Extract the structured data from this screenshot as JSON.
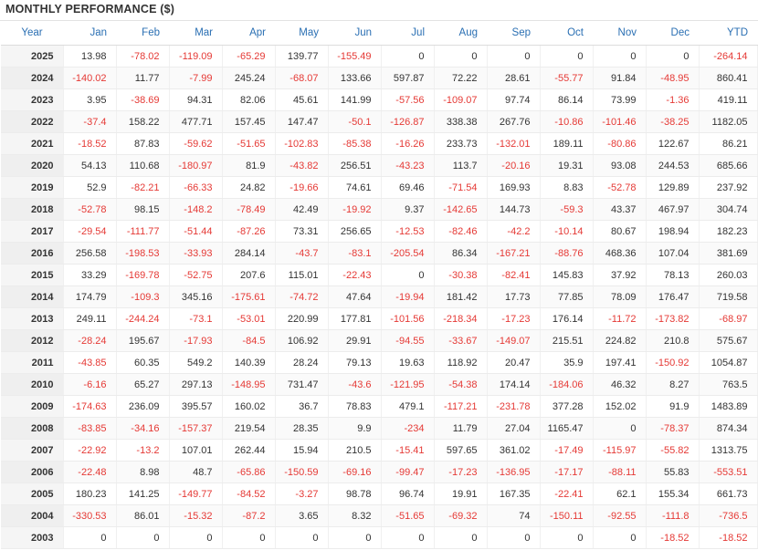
{
  "title": "MONTHLY PERFORMANCE ($)",
  "columns": [
    "Year",
    "Jan",
    "Feb",
    "Mar",
    "Apr",
    "May",
    "Jun",
    "Jul",
    "Aug",
    "Sep",
    "Oct",
    "Nov",
    "Dec",
    "YTD"
  ],
  "colors": {
    "header_text": "#2a6fb3",
    "negative": "#e53935",
    "positive": "#333333"
  },
  "rows": [
    [
      "2025",
      "13.98",
      "-78.02",
      "-119.09",
      "-65.29",
      "139.77",
      "-155.49",
      "0",
      "0",
      "0",
      "0",
      "0",
      "0",
      "-264.14"
    ],
    [
      "2024",
      "-140.02",
      "11.77",
      "-7.99",
      "245.24",
      "-68.07",
      "133.66",
      "597.87",
      "72.22",
      "28.61",
      "-55.77",
      "91.84",
      "-48.95",
      "860.41"
    ],
    [
      "2023",
      "3.95",
      "-38.69",
      "94.31",
      "82.06",
      "45.61",
      "141.99",
      "-57.56",
      "-109.07",
      "97.74",
      "86.14",
      "73.99",
      "-1.36",
      "419.11"
    ],
    [
      "2022",
      "-37.4",
      "158.22",
      "477.71",
      "157.45",
      "147.47",
      "-50.1",
      "-126.87",
      "338.38",
      "267.76",
      "-10.86",
      "-101.46",
      "-38.25",
      "1182.05"
    ],
    [
      "2021",
      "-18.52",
      "87.83",
      "-59.62",
      "-51.65",
      "-102.83",
      "-85.38",
      "-16.26",
      "233.73",
      "-132.01",
      "189.11",
      "-80.86",
      "122.67",
      "86.21"
    ],
    [
      "2020",
      "54.13",
      "110.68",
      "-180.97",
      "81.9",
      "-43.82",
      "256.51",
      "-43.23",
      "113.7",
      "-20.16",
      "19.31",
      "93.08",
      "244.53",
      "685.66"
    ],
    [
      "2019",
      "52.9",
      "-82.21",
      "-66.33",
      "24.82",
      "-19.66",
      "74.61",
      "69.46",
      "-71.54",
      "169.93",
      "8.83",
      "-52.78",
      "129.89",
      "237.92"
    ],
    [
      "2018",
      "-52.78",
      "98.15",
      "-148.2",
      "-78.49",
      "42.49",
      "-19.92",
      "9.37",
      "-142.65",
      "144.73",
      "-59.3",
      "43.37",
      "467.97",
      "304.74"
    ],
    [
      "2017",
      "-29.54",
      "-111.77",
      "-51.44",
      "-87.26",
      "73.31",
      "256.65",
      "-12.53",
      "-82.46",
      "-42.2",
      "-10.14",
      "80.67",
      "198.94",
      "182.23"
    ],
    [
      "2016",
      "256.58",
      "-198.53",
      "-33.93",
      "284.14",
      "-43.7",
      "-83.1",
      "-205.54",
      "86.34",
      "-167.21",
      "-88.76",
      "468.36",
      "107.04",
      "381.69"
    ],
    [
      "2015",
      "33.29",
      "-169.78",
      "-52.75",
      "207.6",
      "115.01",
      "-22.43",
      "0",
      "-30.38",
      "-82.41",
      "145.83",
      "37.92",
      "78.13",
      "260.03"
    ],
    [
      "2014",
      "174.79",
      "-109.3",
      "345.16",
      "-175.61",
      "-74.72",
      "47.64",
      "-19.94",
      "181.42",
      "17.73",
      "77.85",
      "78.09",
      "176.47",
      "719.58"
    ],
    [
      "2013",
      "249.11",
      "-244.24",
      "-73.1",
      "-53.01",
      "220.99",
      "177.81",
      "-101.56",
      "-218.34",
      "-17.23",
      "176.14",
      "-11.72",
      "-173.82",
      "-68.97"
    ],
    [
      "2012",
      "-28.24",
      "195.67",
      "-17.93",
      "-84.5",
      "106.92",
      "29.91",
      "-94.55",
      "-33.67",
      "-149.07",
      "215.51",
      "224.82",
      "210.8",
      "575.67"
    ],
    [
      "2011",
      "-43.85",
      "60.35",
      "549.2",
      "140.39",
      "28.24",
      "79.13",
      "19.63",
      "118.92",
      "20.47",
      "35.9",
      "197.41",
      "-150.92",
      "1054.87"
    ],
    [
      "2010",
      "-6.16",
      "65.27",
      "297.13",
      "-148.95",
      "731.47",
      "-43.6",
      "-121.95",
      "-54.38",
      "174.14",
      "-184.06",
      "46.32",
      "8.27",
      "763.5"
    ],
    [
      "2009",
      "-174.63",
      "236.09",
      "395.57",
      "160.02",
      "36.7",
      "78.83",
      "479.1",
      "-117.21",
      "-231.78",
      "377.28",
      "152.02",
      "91.9",
      "1483.89"
    ],
    [
      "2008",
      "-83.85",
      "-34.16",
      "-157.37",
      "219.54",
      "28.35",
      "9.9",
      "-234",
      "11.79",
      "27.04",
      "1165.47",
      "0",
      "-78.37",
      "874.34"
    ],
    [
      "2007",
      "-22.92",
      "-13.2",
      "107.01",
      "262.44",
      "15.94",
      "210.5",
      "-15.41",
      "597.65",
      "361.02",
      "-17.49",
      "-115.97",
      "-55.82",
      "1313.75"
    ],
    [
      "2006",
      "-22.48",
      "8.98",
      "48.7",
      "-65.86",
      "-150.59",
      "-69.16",
      "-99.47",
      "-17.23",
      "-136.95",
      "-17.17",
      "-88.11",
      "55.83",
      "-553.51"
    ],
    [
      "2005",
      "180.23",
      "141.25",
      "-149.77",
      "-84.52",
      "-3.27",
      "98.78",
      "96.74",
      "19.91",
      "167.35",
      "-22.41",
      "62.1",
      "155.34",
      "661.73"
    ],
    [
      "2004",
      "-330.53",
      "86.01",
      "-15.32",
      "-87.2",
      "3.65",
      "8.32",
      "-51.65",
      "-69.32",
      "74",
      "-150.11",
      "-92.55",
      "-111.8",
      "-736.5"
    ],
    [
      "2003",
      "0",
      "0",
      "0",
      "0",
      "0",
      "0",
      "0",
      "0",
      "0",
      "0",
      "0",
      "-18.52",
      "-18.52"
    ]
  ]
}
